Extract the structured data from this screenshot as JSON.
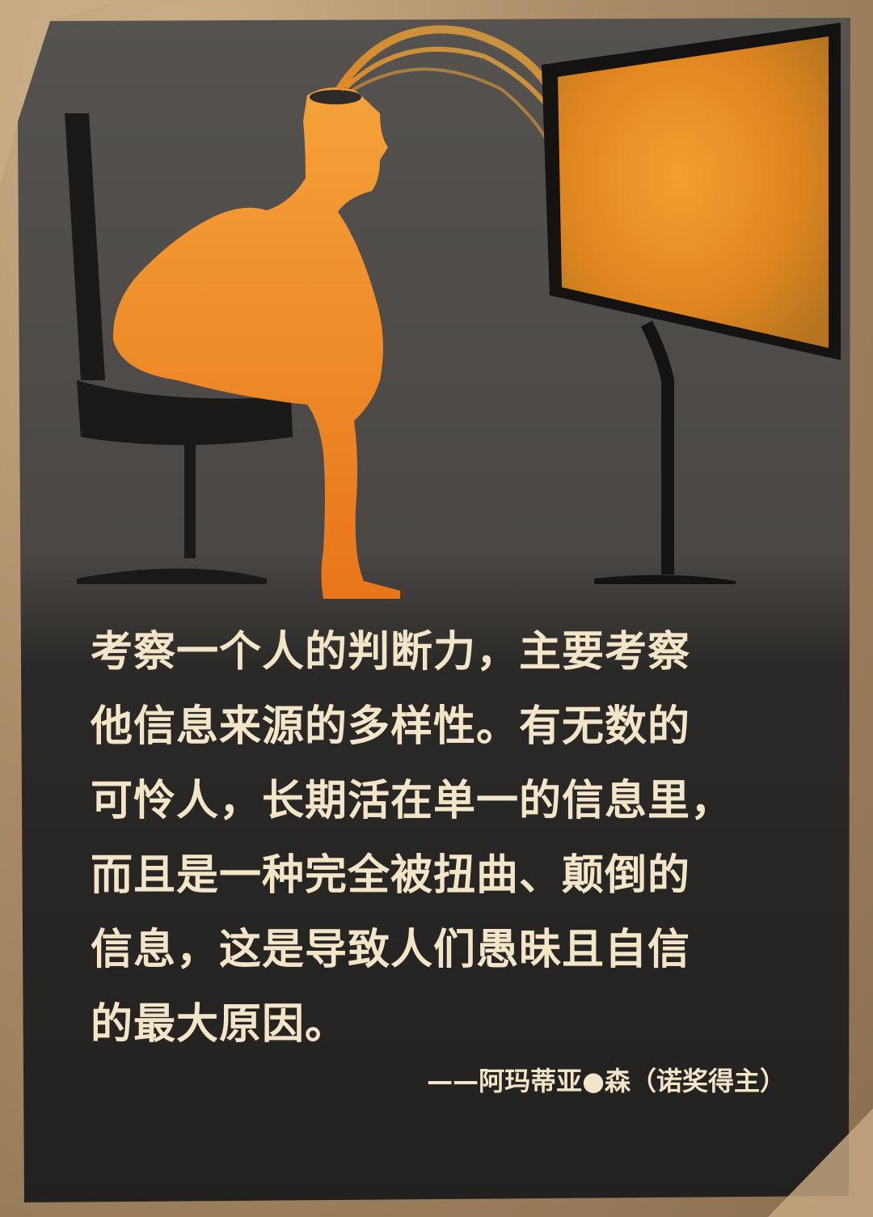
{
  "quote": {
    "lines": [
      "考察一个人的判断力，主要考察",
      "他信息来源的多样性。有无数的",
      "可怜人，长期活在单一的信息里，",
      "而且是一种完全被扭曲、颠倒的",
      "信息，这是导致人们愚昧且自信",
      "的最大原因。"
    ]
  },
  "attribution": "——阿玛蒂亚●森（诺奖得主）",
  "colors": {
    "frame": "#b0936e",
    "card": "#2a2826",
    "figure": "#f08c1e",
    "screen": "#e6962a",
    "text": "#f3e6c8"
  },
  "illustration": {
    "icons": [
      "office-chair-icon",
      "seated-person-icon",
      "computer-monitor-icon"
    ]
  }
}
